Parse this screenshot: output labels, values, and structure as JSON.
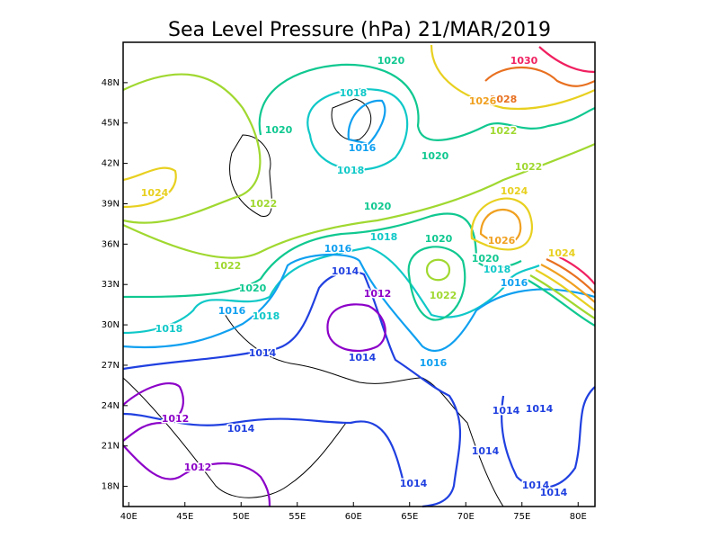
{
  "map": {
    "title": "Sea Level Pressure (hPa) 21/MAR/2019",
    "xlim": [
      39.5,
      81.5
    ],
    "ylim": [
      16.5,
      51
    ],
    "xticks": [
      {
        "value": 40,
        "label": "40E"
      },
      {
        "value": 45,
        "label": "45E"
      },
      {
        "value": 50,
        "label": "50E"
      },
      {
        "value": 55,
        "label": "55E"
      },
      {
        "value": 60,
        "label": "60E"
      },
      {
        "value": 65,
        "label": "65E"
      },
      {
        "value": 70,
        "label": "70E"
      },
      {
        "value": 75,
        "label": "75E"
      },
      {
        "value": 80,
        "label": "80E"
      }
    ],
    "yticks": [
      {
        "value": 48,
        "label": "48N"
      },
      {
        "value": 45,
        "label": "45N"
      },
      {
        "value": 42,
        "label": "42N"
      },
      {
        "value": 39,
        "label": "39N"
      },
      {
        "value": 36,
        "label": "36N"
      },
      {
        "value": 33,
        "label": "33N"
      },
      {
        "value": 30,
        "label": "30N"
      },
      {
        "value": 27,
        "label": "27N"
      },
      {
        "value": 24,
        "label": "24N"
      },
      {
        "value": 21,
        "label": "21N"
      },
      {
        "value": 18,
        "label": "18N"
      }
    ],
    "levels": [
      {
        "value": 1012,
        "color": "#8c00c8"
      },
      {
        "value": 1014,
        "color": "#2040e0"
      },
      {
        "value": 1016,
        "color": "#10a0f0"
      },
      {
        "value": 1018,
        "color": "#10c8c8"
      },
      {
        "value": 1020,
        "color": "#10c890"
      },
      {
        "value": 1022,
        "color": "#a0d830"
      },
      {
        "value": 1024,
        "color": "#e8d020"
      },
      {
        "value": 1026,
        "color": "#f0a020"
      },
      {
        "value": 1028,
        "color": "#e87020"
      },
      {
        "value": 1030,
        "color": "#f02060"
      }
    ],
    "contour_labels": [
      1030,
      1028,
      1026,
      1022,
      1020,
      1018,
      1016,
      1020,
      1018,
      1020,
      1022,
      1024,
      1024,
      1022,
      1020,
      1018,
      1020,
      1026,
      1024,
      1020,
      1018,
      1016,
      1014,
      1022,
      1020,
      1012,
      1022,
      1016,
      1016,
      1018,
      1018,
      1014,
      1014,
      1016,
      1012,
      1014,
      1014,
      1014,
      1012,
      1014,
      1014,
      1014,
      1014
    ]
  }
}
